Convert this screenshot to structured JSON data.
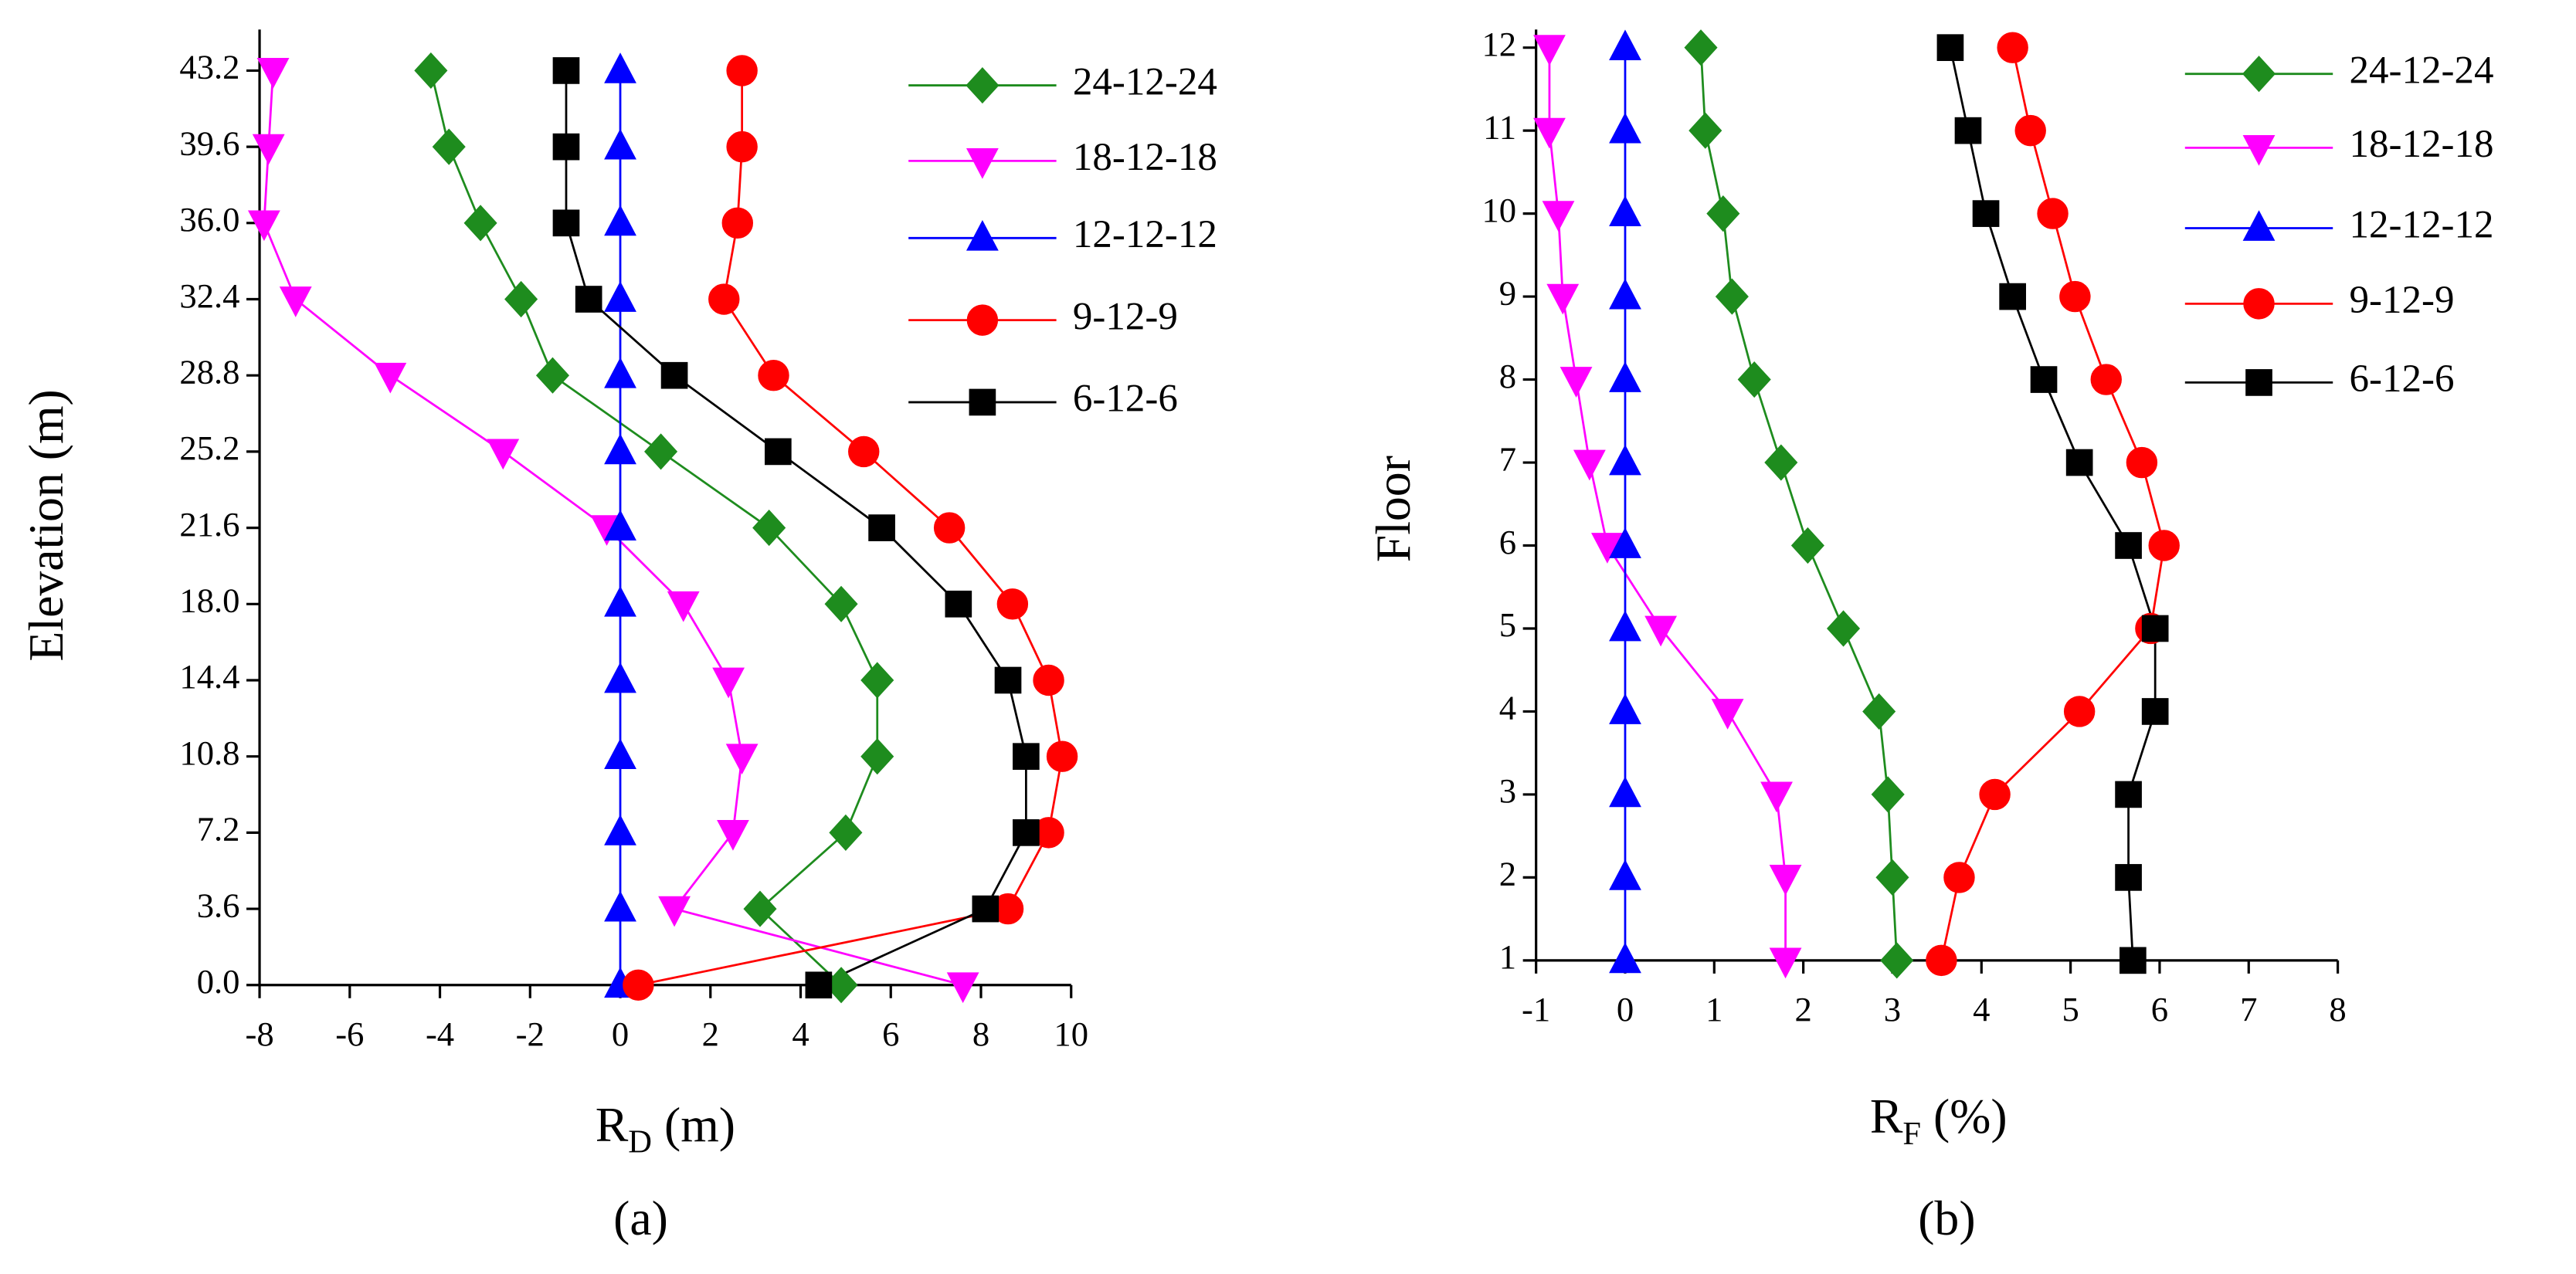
{
  "chart_data": [
    {
      "type": "line",
      "orientation": "horizontal",
      "y_label": "Elevation (m)",
      "x_label": {
        "main": "R",
        "sub": "D",
        "unit": " (m)"
      },
      "panel_label": "(a)",
      "y": [
        0,
        3.6,
        7.2,
        10.8,
        14.4,
        18,
        21.6,
        25.2,
        28.8,
        32.4,
        36,
        39.6,
        43.2
      ],
      "xlim": [
        -8,
        10
      ],
      "xticks": [
        -8,
        -6,
        -4,
        -2,
        0,
        2,
        4,
        6,
        8,
        10
      ],
      "ylim": [
        0,
        43.2
      ],
      "yticks": [
        {
          "value": 0,
          "label": "0.0"
        },
        3.6,
        7.2,
        10.8,
        14.4,
        {
          "value": 18,
          "label": "18.0"
        },
        21.6,
        25.2,
        28.8,
        32.4,
        {
          "value": 36,
          "label": "36.0"
        },
        39.6,
        43.2
      ],
      "series": [
        {
          "name": "24-12-24",
          "color": "#1e8c1e",
          "marker": "diamond",
          "values": [
            4.9,
            3.1,
            5.0,
            5.7,
            5.7,
            4.9,
            3.3,
            0.9,
            -1.5,
            -2.2,
            -3.1,
            -3.8,
            -4.2
          ]
        },
        {
          "name": "18-12-18",
          "color": "#ff00ff",
          "marker": "triangle-down",
          "values": [
            7.6,
            1.2,
            2.5,
            2.7,
            2.4,
            1.4,
            -0.3,
            -2.6,
            -5.1,
            -7.2,
            -7.9,
            -7.8,
            -7.7
          ]
        },
        {
          "name": "12-12-12",
          "color": "#0000ff",
          "marker": "triangle-up",
          "values": [
            0,
            0,
            0,
            0,
            0,
            0,
            0,
            0,
            0,
            0,
            0,
            0,
            0
          ]
        },
        {
          "name": "9-12-9",
          "color": "#ff0000",
          "marker": "circle",
          "values": [
            0.4,
            8.6,
            9.5,
            9.8,
            9.5,
            8.7,
            7.3,
            5.4,
            3.4,
            2.3,
            2.6,
            2.7,
            2.7
          ]
        },
        {
          "name": "6-12-6",
          "color": "#000000",
          "marker": "square",
          "values": [
            4.4,
            8.1,
            9.0,
            9.0,
            8.6,
            7.5,
            5.8,
            3.5,
            1.2,
            -0.7,
            -1.2,
            -1.2,
            -1.2
          ]
        }
      ]
    },
    {
      "type": "line",
      "orientation": "horizontal",
      "y_label": "Floor",
      "x_label": {
        "main": "R",
        "sub": "F",
        "unit": " (%)"
      },
      "panel_label": "(b)",
      "y": [
        1,
        2,
        3,
        4,
        5,
        6,
        7,
        8,
        9,
        10,
        11,
        12
      ],
      "xlim": [
        -1,
        8
      ],
      "xticks": [
        -1,
        0,
        1,
        2,
        3,
        4,
        5,
        6,
        7,
        8
      ],
      "ylim": [
        1,
        12
      ],
      "yticks": [
        1,
        2,
        3,
        4,
        5,
        6,
        7,
        8,
        9,
        10,
        11,
        12
      ],
      "series": [
        {
          "name": "24-12-24",
          "color": "#1e8c1e",
          "marker": "diamond",
          "values": [
            3.05,
            3.0,
            2.95,
            2.85,
            2.45,
            2.05,
            1.75,
            1.45,
            1.2,
            1.1,
            0.9,
            0.85
          ]
        },
        {
          "name": "18-12-18",
          "color": "#ff00ff",
          "marker": "triangle-down",
          "values": [
            1.8,
            1.8,
            1.7,
            1.15,
            0.4,
            -0.2,
            -0.4,
            -0.55,
            -0.7,
            -0.75,
            -0.85,
            -0.85
          ]
        },
        {
          "name": "12-12-12",
          "color": "#0000ff",
          "marker": "triangle-up",
          "values": [
            0,
            0,
            0,
            0,
            0,
            0,
            0,
            0,
            0,
            0,
            0,
            0
          ]
        },
        {
          "name": "9-12-9",
          "color": "#ff0000",
          "marker": "circle",
          "values": [
            3.55,
            3.75,
            4.15,
            5.1,
            5.9,
            6.05,
            5.8,
            5.4,
            5.05,
            4.8,
            4.55,
            4.35
          ]
        },
        {
          "name": "6-12-6",
          "color": "#000000",
          "marker": "square",
          "values": [
            5.7,
            5.65,
            5.65,
            5.95,
            5.95,
            5.65,
            5.1,
            4.7,
            4.35,
            4.05,
            3.85,
            3.65
          ]
        }
      ]
    }
  ]
}
